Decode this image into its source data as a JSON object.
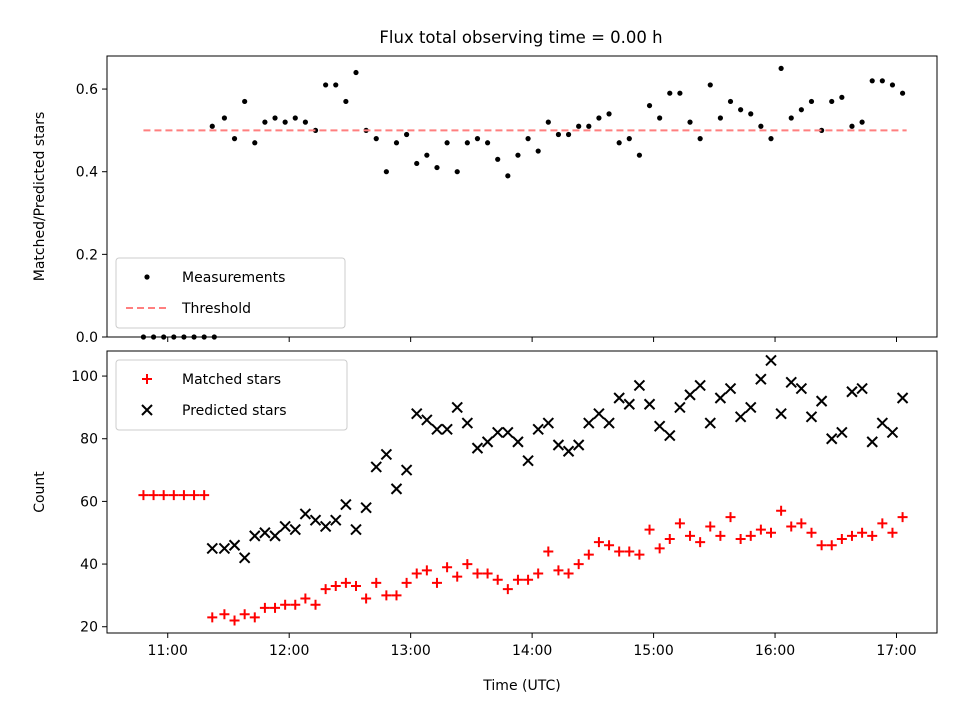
{
  "chart_data": [
    {
      "type": "scatter",
      "title": "Flux total observing time = 0.00 h",
      "xlabel": "",
      "ylabel": "Matched/Predicted stars",
      "xlim": [
        "10:30",
        "17:20"
      ],
      "ylim": [
        0,
        0.68
      ],
      "yticks": [
        0.0,
        0.2,
        0.4,
        0.6
      ],
      "ytick_labels": [
        "0.0",
        "0.2",
        "0.4",
        "0.6"
      ],
      "xticks": [
        "11:00",
        "12:00",
        "13:00",
        "14:00",
        "15:00",
        "16:00",
        "17:00"
      ],
      "xtick_labels_shown": false,
      "legend_position": "lower-left",
      "series": [
        {
          "name": "Measurements",
          "kind": "scatter",
          "marker": "dot",
          "color": "#000000",
          "points": [
            [
              "10:48",
              0.0
            ],
            [
              "10:53",
              0.0
            ],
            [
              "10:58",
              0.0
            ],
            [
              "11:03",
              0.0
            ],
            [
              "11:08",
              0.0
            ],
            [
              "11:13",
              0.0
            ],
            [
              "11:18",
              0.0
            ],
            [
              "11:23",
              0.0
            ],
            [
              "11:22",
              0.51
            ],
            [
              "11:28",
              0.53
            ],
            [
              "11:33",
              0.48
            ],
            [
              "11:38",
              0.57
            ],
            [
              "11:43",
              0.47
            ],
            [
              "11:48",
              0.52
            ],
            [
              "11:53",
              0.53
            ],
            [
              "11:58",
              0.52
            ],
            [
              "12:03",
              0.53
            ],
            [
              "12:08",
              0.52
            ],
            [
              "12:13",
              0.5
            ],
            [
              "12:18",
              0.61
            ],
            [
              "12:23",
              0.61
            ],
            [
              "12:28",
              0.57
            ],
            [
              "12:33",
              0.64
            ],
            [
              "12:38",
              0.5
            ],
            [
              "12:43",
              0.48
            ],
            [
              "12:48",
              0.4
            ],
            [
              "12:53",
              0.47
            ],
            [
              "12:58",
              0.49
            ],
            [
              "13:03",
              0.42
            ],
            [
              "13:08",
              0.44
            ],
            [
              "13:13",
              0.41
            ],
            [
              "13:18",
              0.47
            ],
            [
              "13:23",
              0.4
            ],
            [
              "13:28",
              0.47
            ],
            [
              "13:33",
              0.48
            ],
            [
              "13:38",
              0.47
            ],
            [
              "13:43",
              0.43
            ],
            [
              "13:48",
              0.39
            ],
            [
              "13:53",
              0.44
            ],
            [
              "13:58",
              0.48
            ],
            [
              "14:03",
              0.45
            ],
            [
              "14:08",
              0.52
            ],
            [
              "14:13",
              0.49
            ],
            [
              "14:18",
              0.49
            ],
            [
              "14:23",
              0.51
            ],
            [
              "14:28",
              0.51
            ],
            [
              "14:33",
              0.53
            ],
            [
              "14:38",
              0.54
            ],
            [
              "14:43",
              0.47
            ],
            [
              "14:48",
              0.48
            ],
            [
              "14:53",
              0.44
            ],
            [
              "14:58",
              0.56
            ],
            [
              "15:03",
              0.53
            ],
            [
              "15:08",
              0.59
            ],
            [
              "15:13",
              0.59
            ],
            [
              "15:18",
              0.52
            ],
            [
              "15:23",
              0.48
            ],
            [
              "15:28",
              0.61
            ],
            [
              "15:33",
              0.53
            ],
            [
              "15:38",
              0.57
            ],
            [
              "15:43",
              0.55
            ],
            [
              "15:48",
              0.54
            ],
            [
              "15:53",
              0.51
            ],
            [
              "15:58",
              0.48
            ],
            [
              "16:03",
              0.65
            ],
            [
              "16:08",
              0.53
            ],
            [
              "16:13",
              0.55
            ],
            [
              "16:18",
              0.57
            ],
            [
              "16:23",
              0.5
            ],
            [
              "16:28",
              0.57
            ],
            [
              "16:33",
              0.58
            ],
            [
              "16:38",
              0.51
            ],
            [
              "16:43",
              0.52
            ],
            [
              "16:48",
              0.62
            ],
            [
              "16:53",
              0.62
            ],
            [
              "16:58",
              0.61
            ],
            [
              "17:03",
              0.59
            ]
          ]
        },
        {
          "name": "Threshold",
          "kind": "line",
          "style": "dashed",
          "color": "#ff7f7f",
          "points": [
            [
              "10:48",
              0.5
            ],
            [
              "17:05",
              0.5
            ]
          ]
        }
      ]
    },
    {
      "type": "scatter",
      "title": "",
      "xlabel": "Time (UTC)",
      "ylabel": "Count",
      "xlim": [
        "10:30",
        "17:20"
      ],
      "ylim": [
        18,
        108
      ],
      "yticks": [
        20,
        40,
        60,
        80,
        100
      ],
      "ytick_labels": [
        "20",
        "40",
        "60",
        "80",
        "100"
      ],
      "xticks": [
        "11:00",
        "12:00",
        "13:00",
        "14:00",
        "15:00",
        "16:00",
        "17:00"
      ],
      "xtick_labels": [
        "11:00",
        "12:00",
        "13:00",
        "14:00",
        "15:00",
        "16:00",
        "17:00"
      ],
      "legend_position": "upper-left",
      "series": [
        {
          "name": "Matched stars",
          "kind": "scatter",
          "marker": "plus",
          "color": "#ff0000",
          "points": [
            [
              "10:48",
              62
            ],
            [
              "10:53",
              62
            ],
            [
              "10:58",
              62
            ],
            [
              "11:03",
              62
            ],
            [
              "11:08",
              62
            ],
            [
              "11:13",
              62
            ],
            [
              "11:18",
              62
            ],
            [
              "11:22",
              23
            ],
            [
              "11:28",
              24
            ],
            [
              "11:33",
              22
            ],
            [
              "11:38",
              24
            ],
            [
              "11:43",
              23
            ],
            [
              "11:48",
              26
            ],
            [
              "11:53",
              26
            ],
            [
              "11:58",
              27
            ],
            [
              "12:03",
              27
            ],
            [
              "12:08",
              29
            ],
            [
              "12:13",
              27
            ],
            [
              "12:18",
              32
            ],
            [
              "12:23",
              33
            ],
            [
              "12:28",
              34
            ],
            [
              "12:33",
              33
            ],
            [
              "12:38",
              29
            ],
            [
              "12:43",
              34
            ],
            [
              "12:48",
              30
            ],
            [
              "12:53",
              30
            ],
            [
              "12:58",
              34
            ],
            [
              "13:03",
              37
            ],
            [
              "13:08",
              38
            ],
            [
              "13:13",
              34
            ],
            [
              "13:18",
              39
            ],
            [
              "13:23",
              36
            ],
            [
              "13:28",
              40
            ],
            [
              "13:33",
              37
            ],
            [
              "13:38",
              37
            ],
            [
              "13:43",
              35
            ],
            [
              "13:48",
              32
            ],
            [
              "13:53",
              35
            ],
            [
              "13:58",
              35
            ],
            [
              "14:03",
              37
            ],
            [
              "14:08",
              44
            ],
            [
              "14:13",
              38
            ],
            [
              "14:18",
              37
            ],
            [
              "14:23",
              40
            ],
            [
              "14:28",
              43
            ],
            [
              "14:33",
              47
            ],
            [
              "14:38",
              46
            ],
            [
              "14:43",
              44
            ],
            [
              "14:48",
              44
            ],
            [
              "14:53",
              43
            ],
            [
              "14:58",
              51
            ],
            [
              "15:03",
              45
            ],
            [
              "15:08",
              48
            ],
            [
              "15:13",
              53
            ],
            [
              "15:18",
              49
            ],
            [
              "15:23",
              47
            ],
            [
              "15:28",
              52
            ],
            [
              "15:33",
              49
            ],
            [
              "15:38",
              55
            ],
            [
              "15:43",
              48
            ],
            [
              "15:48",
              49
            ],
            [
              "15:53",
              51
            ],
            [
              "15:58",
              50
            ],
            [
              "16:03",
              57
            ],
            [
              "16:08",
              52
            ],
            [
              "16:13",
              53
            ],
            [
              "16:18",
              50
            ],
            [
              "16:23",
              46
            ],
            [
              "16:28",
              46
            ],
            [
              "16:33",
              48
            ],
            [
              "16:38",
              49
            ],
            [
              "16:43",
              50
            ],
            [
              "16:48",
              49
            ],
            [
              "16:53",
              53
            ],
            [
              "16:58",
              50
            ],
            [
              "17:03",
              55
            ]
          ]
        },
        {
          "name": "Predicted stars",
          "kind": "scatter",
          "marker": "x",
          "color": "#000000",
          "points": [
            [
              "11:22",
              45
            ],
            [
              "11:28",
              45
            ],
            [
              "11:33",
              46
            ],
            [
              "11:38",
              42
            ],
            [
              "11:43",
              49
            ],
            [
              "11:48",
              50
            ],
            [
              "11:53",
              49
            ],
            [
              "11:58",
              52
            ],
            [
              "12:03",
              51
            ],
            [
              "12:08",
              56
            ],
            [
              "12:13",
              54
            ],
            [
              "12:18",
              52
            ],
            [
              "12:23",
              54
            ],
            [
              "12:28",
              59
            ],
            [
              "12:33",
              51
            ],
            [
              "12:38",
              58
            ],
            [
              "12:43",
              71
            ],
            [
              "12:48",
              75
            ],
            [
              "12:53",
              64
            ],
            [
              "12:58",
              70
            ],
            [
              "13:03",
              88
            ],
            [
              "13:08",
              86
            ],
            [
              "13:13",
              83
            ],
            [
              "13:18",
              83
            ],
            [
              "13:23",
              90
            ],
            [
              "13:28",
              85
            ],
            [
              "13:33",
              77
            ],
            [
              "13:38",
              79
            ],
            [
              "13:43",
              82
            ],
            [
              "13:48",
              82
            ],
            [
              "13:53",
              79
            ],
            [
              "13:58",
              73
            ],
            [
              "14:03",
              83
            ],
            [
              "14:08",
              85
            ],
            [
              "14:13",
              78
            ],
            [
              "14:18",
              76
            ],
            [
              "14:23",
              78
            ],
            [
              "14:28",
              85
            ],
            [
              "14:33",
              88
            ],
            [
              "14:38",
              85
            ],
            [
              "14:43",
              93
            ],
            [
              "14:48",
              91
            ],
            [
              "14:53",
              97
            ],
            [
              "14:58",
              91
            ],
            [
              "15:03",
              84
            ],
            [
              "15:08",
              81
            ],
            [
              "15:13",
              90
            ],
            [
              "15:18",
              94
            ],
            [
              "15:23",
              97
            ],
            [
              "15:28",
              85
            ],
            [
              "15:33",
              93
            ],
            [
              "15:38",
              96
            ],
            [
              "15:43",
              87
            ],
            [
              "15:48",
              90
            ],
            [
              "15:53",
              99
            ],
            [
              "15:58",
              105
            ],
            [
              "16:03",
              88
            ],
            [
              "16:08",
              98
            ],
            [
              "16:13",
              96
            ],
            [
              "16:18",
              87
            ],
            [
              "16:23",
              92
            ],
            [
              "16:28",
              80
            ],
            [
              "16:33",
              82
            ],
            [
              "16:38",
              95
            ],
            [
              "16:43",
              96
            ],
            [
              "16:48",
              79
            ],
            [
              "16:53",
              85
            ],
            [
              "16:58",
              82
            ],
            [
              "17:03",
              93
            ]
          ]
        }
      ]
    }
  ]
}
